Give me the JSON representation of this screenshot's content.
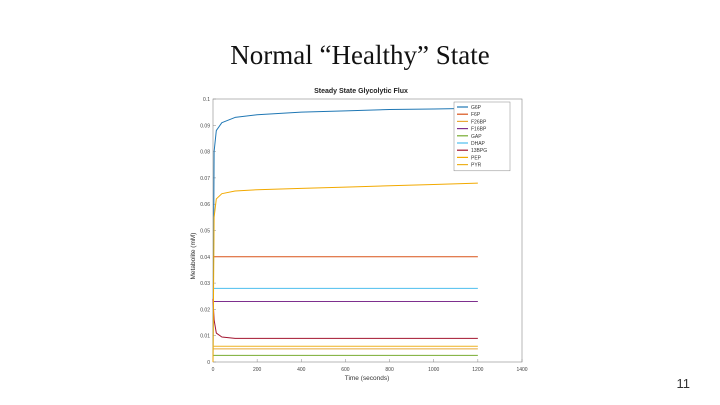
{
  "slide": {
    "title": "Normal “Healthy” State",
    "number": "11"
  },
  "chart_data": {
    "type": "line",
    "title": "Steady State Glycolytic Flux",
    "xlabel": "Time (seconds)",
    "ylabel": "Metabolite (mM)",
    "xlim": [
      0,
      1400
    ],
    "ylim": [
      0,
      0.1
    ],
    "xticks": [
      0,
      200,
      400,
      600,
      800,
      1000,
      1200,
      1400
    ],
    "yticks": [
      0,
      0.01,
      0.02,
      0.03,
      0.04,
      0.05,
      0.06,
      0.07,
      0.08,
      0.09,
      0.1
    ],
    "grid": false,
    "legend_position": "top-right",
    "series": [
      {
        "name": "G6P",
        "color": "#1f77b4",
        "x": [
          0,
          5,
          15,
          40,
          100,
          200,
          400,
          600,
          800,
          1000,
          1200
        ],
        "y": [
          0,
          0.08,
          0.088,
          0.091,
          0.093,
          0.094,
          0.095,
          0.0955,
          0.096,
          0.0962,
          0.0965
        ]
      },
      {
        "name": "F6P",
        "color": "#d95319",
        "x": [
          0,
          1200
        ],
        "y": [
          0.04,
          0.04
        ]
      },
      {
        "name": "F26BP",
        "color": "#e8a838",
        "x": [
          0,
          20,
          60,
          120,
          300,
          600,
          900,
          1200
        ],
        "y": [
          0.005,
          0.005,
          0.005,
          0.005,
          0.005,
          0.005,
          0.005,
          0.005
        ]
      },
      {
        "name": "F16BP",
        "color": "#7e2f8e",
        "x": [
          0,
          1200
        ],
        "y": [
          0.023,
          0.023
        ]
      },
      {
        "name": "GAP",
        "color": "#77ac30",
        "x": [
          0,
          1200
        ],
        "y": [
          0.0025,
          0.0025
        ]
      },
      {
        "name": "DHAP",
        "color": "#4dbeee",
        "x": [
          0,
          1200
        ],
        "y": [
          0.028,
          0.028
        ]
      },
      {
        "name": "13BPG",
        "color": "#a2142f",
        "x": [
          0,
          5,
          15,
          40,
          100,
          200,
          400,
          800,
          1200
        ],
        "y": [
          0.024,
          0.016,
          0.011,
          0.0095,
          0.009,
          0.009,
          0.009,
          0.009,
          0.009
        ]
      },
      {
        "name": "PEP",
        "color": "#f2a900",
        "x": [
          0,
          5,
          15,
          40,
          100,
          200,
          400,
          600,
          800,
          1000,
          1200
        ],
        "y": [
          0,
          0.055,
          0.062,
          0.064,
          0.065,
          0.0655,
          0.066,
          0.0665,
          0.067,
          0.0675,
          0.068
        ]
      },
      {
        "name": "PYR",
        "color": "#edb120",
        "x": [
          0,
          1200
        ],
        "y": [
          0.006,
          0.006
        ]
      }
    ]
  }
}
